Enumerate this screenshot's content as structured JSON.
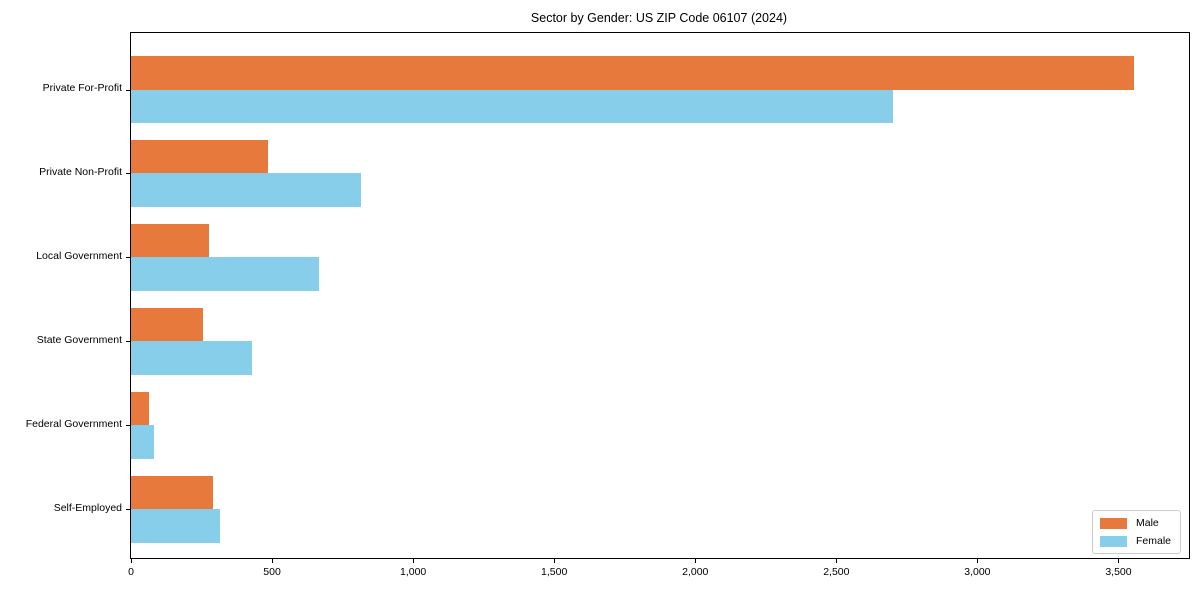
{
  "title": "Sector by Gender: US ZIP Code 06107 (2024)",
  "chart_data": {
    "type": "bar",
    "orientation": "horizontal",
    "title": "Sector by Gender: US ZIP Code 06107 (2024)",
    "categories": [
      "Private For-Profit",
      "Private Non-Profit",
      "Local Government",
      "State Government",
      "Federal Government",
      "Self-Employed"
    ],
    "series": [
      {
        "name": "Male",
        "color": "#E8793C",
        "values": [
          3555,
          485,
          275,
          255,
          65,
          290
        ]
      },
      {
        "name": "Female",
        "color": "#87CEEB",
        "values": [
          2700,
          815,
          665,
          430,
          80,
          315
        ]
      }
    ],
    "xlabel": "",
    "ylabel": "",
    "xlim": [
      0,
      3750
    ],
    "xticks": [
      0,
      500,
      1000,
      1500,
      2000,
      2500,
      3000,
      3500
    ],
    "xtick_labels": [
      "0",
      "500",
      "1,000",
      "1,500",
      "2,000",
      "2,500",
      "3,000",
      "3,500"
    ],
    "grid": false,
    "legend": {
      "position": "lower right",
      "entries": [
        "Male",
        "Female"
      ]
    }
  }
}
